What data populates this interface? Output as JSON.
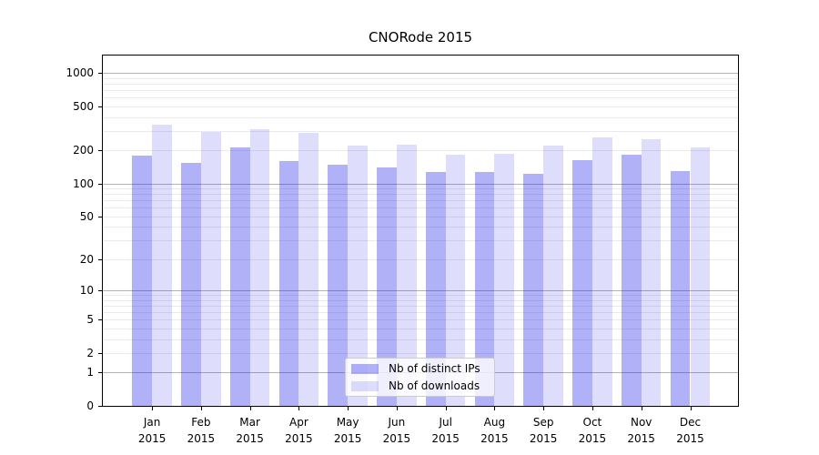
{
  "title": "CNORode 2015",
  "chart_data": {
    "type": "bar",
    "title": "CNORode 2015",
    "categories": [
      "Jan",
      "Feb",
      "Mar",
      "Apr",
      "May",
      "Jun",
      "Jul",
      "Aug",
      "Sep",
      "Oct",
      "Nov",
      "Dec"
    ],
    "x_year": "2015",
    "series": [
      {
        "name": "Nb of distinct IPs",
        "color": "rgba(32,32,232,0.35)",
        "values": [
          178,
          155,
          212,
          160,
          147,
          140,
          126,
          128,
          123,
          163,
          182,
          129
        ]
      },
      {
        "name": "Nb of downloads",
        "color": "rgba(32,32,232,0.15)",
        "values": [
          338,
          294,
          308,
          288,
          221,
          226,
          182,
          186,
          221,
          261,
          253,
          212
        ]
      }
    ],
    "y_ticks": [
      0,
      1,
      2,
      5,
      10,
      20,
      50,
      100,
      200,
      500,
      1000
    ],
    "y_scale": "log1p",
    "ylim": [
      0,
      1433
    ],
    "grid": {
      "enabled": true,
      "major_color": "#b3b3b3",
      "minor_color": "#eaeaea"
    },
    "legend": {
      "position": "lower-center"
    }
  }
}
